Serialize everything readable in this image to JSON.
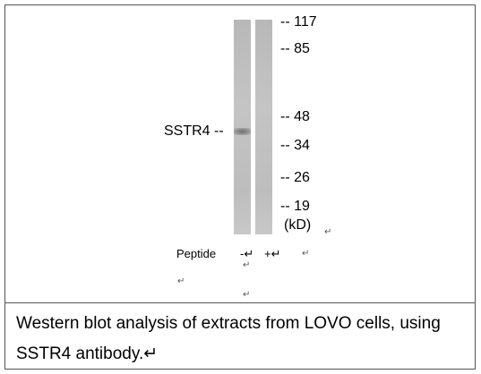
{
  "figure": {
    "markers": [
      "-- 117",
      "-- 85",
      "-- 48",
      "-- 34",
      "-- 26",
      "-- 19"
    ],
    "unit": "(kD)",
    "band_label": "SSTR4 --",
    "peptide": {
      "label": "Peptide",
      "lanes": [
        "-↵",
        "+↵"
      ]
    },
    "paragraph_marks": [
      "↵",
      "↵",
      "↵",
      "↵",
      "↵"
    ]
  },
  "caption": {
    "lines": [
      "Western blot analysis of extracts from LOVO cells, using",
      "SSTR4 antibody.↵"
    ]
  }
}
